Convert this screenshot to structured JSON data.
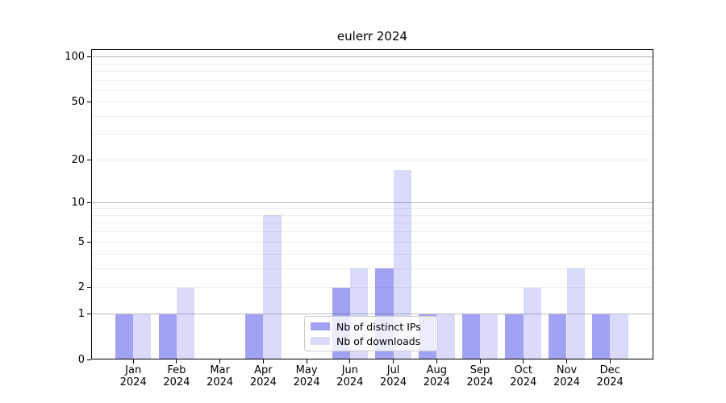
{
  "title": "eulerr 2024",
  "legend": {
    "item1": "Nb of distinct IPs",
    "item2": "Nb of downloads"
  },
  "colors": {
    "bar_base": "#4646e6",
    "bar_ips_rendered": "#a3a3ee",
    "bar_downloads_rendered": "#dadaf8",
    "grid_major": "#bbbbbb",
    "grid_minor": "#ededed",
    "axis": "#000000",
    "background": "#ffffff"
  },
  "chart_data": {
    "type": "bar",
    "title": "eulerr 2024",
    "categories": [
      "Jan 2024",
      "Feb 2024",
      "Mar 2024",
      "Apr 2024",
      "May 2024",
      "Jun 2024",
      "Jul 2024",
      "Aug 2024",
      "Sep 2024",
      "Oct 2024",
      "Nov 2024",
      "Dec 2024"
    ],
    "series": [
      {
        "name": "Nb of distinct IPs",
        "values": [
          1,
          1,
          0,
          1,
          0,
          2,
          3,
          1,
          1,
          1,
          1,
          1
        ],
        "base_color": "#4646e6",
        "fill_alpha": 0.5
      },
      {
        "name": "Nb of downloads",
        "values": [
          1,
          2,
          0,
          8,
          0,
          3,
          17,
          1,
          1,
          2,
          3,
          1
        ],
        "base_color": "#4646e6",
        "fill_alpha": 0.2
      }
    ],
    "xlabel": "",
    "ylabel": "",
    "y_scale": "log1p",
    "y_ticks": [
      0,
      1,
      2,
      5,
      10,
      20,
      50,
      100
    ],
    "y_minor_gridlines": [
      3,
      4,
      6,
      7,
      8,
      9,
      30,
      40,
      60,
      70,
      80,
      90
    ],
    "ylim": [
      0,
      113
    ],
    "grid": true,
    "legend_position": "inside-bottom-center",
    "legend_entries": [
      "Nb of distinct IPs",
      "Nb of downloads"
    ]
  }
}
